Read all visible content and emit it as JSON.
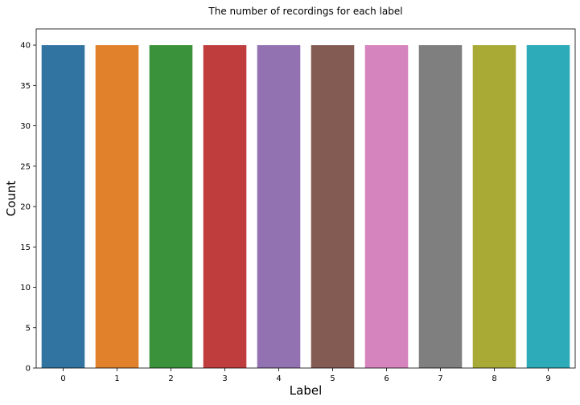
{
  "chart_data": {
    "type": "bar",
    "title": "The number of recordings for each label",
    "xlabel": "Label",
    "ylabel": "Count",
    "categories": [
      "0",
      "1",
      "2",
      "3",
      "4",
      "5",
      "6",
      "7",
      "8",
      "9"
    ],
    "values": [
      40,
      40,
      40,
      40,
      40,
      40,
      40,
      40,
      40,
      40
    ],
    "colors": [
      "#3274a1",
      "#e1812c",
      "#3a923a",
      "#c03d3e",
      "#9372b2",
      "#845b53",
      "#d684bd",
      "#7f7f7f",
      "#a9aa35",
      "#2eabb8"
    ],
    "ylim": [
      0,
      42
    ],
    "yticks": [
      0,
      5,
      10,
      15,
      20,
      25,
      30,
      35,
      40
    ],
    "grid": false,
    "legend": "none"
  }
}
